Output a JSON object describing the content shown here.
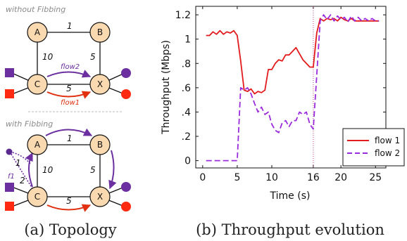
{
  "topology": {
    "top_label": "without Fibbing",
    "bottom_label": "with Fibbing",
    "nodes": {
      "a": "A",
      "b": "B",
      "c": "C",
      "x": "X"
    },
    "weights": {
      "ab": "1",
      "ac": "10",
      "bx": "5",
      "cx": "5"
    },
    "flow1_label": "flow1",
    "flow2_label": "flow2",
    "fake_node_label": "f1",
    "fake_w1": "1",
    "fake_w2": "2",
    "caption": "(a) Topology",
    "colors": {
      "node_fill": "#f9d9b0",
      "flow1": "#e03010",
      "flow2": "#6b2fa0"
    }
  },
  "chart_data": {
    "type": "line",
    "caption": "(b) Throughput evolution",
    "xlabel": "Time (s)",
    "ylabel": "Throughput (Mbps)",
    "xlim": [
      -1,
      26.5
    ],
    "ylim": [
      -0.06,
      1.27
    ],
    "xticks": [
      0,
      5,
      10,
      16,
      20,
      25
    ],
    "xtick_labels": [
      "0",
      "5",
      "10",
      "16",
      "20",
      "25"
    ],
    "yticks": [
      0,
      0.2,
      0.4,
      0.6,
      0.8,
      1.0,
      1.2
    ],
    "ytick_labels": [
      "0",
      ".2",
      ".4",
      ".6",
      ".8",
      "1",
      "1.2"
    ],
    "vline_x": 16,
    "legend_position": "bottom-right",
    "series": [
      {
        "name": "flow 1",
        "color": "#e31a1c",
        "dash": "solid",
        "x": [
          0.5,
          1,
          1.5,
          2,
          2.5,
          3,
          3.5,
          4,
          4.5,
          5,
          5.5,
          6,
          6.5,
          7,
          7.5,
          8,
          8.5,
          9,
          9.5,
          10,
          10.5,
          11,
          11.5,
          12,
          12.5,
          13,
          13.5,
          14,
          14.5,
          15,
          15.5,
          16,
          16.5,
          17,
          17.5,
          18,
          18.5,
          19,
          19.5,
          20,
          20.5,
          21,
          21.5,
          22,
          22.5,
          23,
          23.5,
          24,
          24.5,
          25,
          25.5
        ],
        "y": [
          1.03,
          1.03,
          1.06,
          1.04,
          1.07,
          1.04,
          1.06,
          1.05,
          1.07,
          1.03,
          0.82,
          0.58,
          0.57,
          0.59,
          0.55,
          0.57,
          0.56,
          0.58,
          0.75,
          0.75,
          0.8,
          0.83,
          0.82,
          0.87,
          0.87,
          0.9,
          0.93,
          0.88,
          0.83,
          0.8,
          0.77,
          0.77,
          1.05,
          1.17,
          1.15,
          1.17,
          1.16,
          1.17,
          1.15,
          1.18,
          1.16,
          1.15,
          1.17,
          1.15,
          1.15,
          1.15,
          1.15,
          1.15,
          1.15,
          1.15,
          1.15
        ]
      },
      {
        "name": "flow 2",
        "color": "#9a2bde",
        "dash": "dashed",
        "x": [
          0.5,
          1,
          1.5,
          2,
          2.5,
          3,
          3.5,
          4,
          4.5,
          5,
          5.5,
          6,
          6.5,
          7,
          7.5,
          8,
          8.5,
          9,
          9.5,
          10,
          10.5,
          11,
          11.5,
          12,
          12.5,
          13,
          13.5,
          14,
          14.5,
          15,
          15.5,
          16,
          16.5,
          17,
          17.5,
          18,
          18.5,
          19,
          19.5,
          20,
          20.5,
          21,
          21.5,
          22,
          22.5,
          23,
          23.5,
          24,
          24.5,
          25,
          25.5
        ],
        "y": [
          0,
          0,
          0,
          0,
          0,
          0,
          0,
          0,
          0,
          0,
          0.6,
          0.58,
          0.6,
          0.55,
          0.47,
          0.4,
          0.44,
          0.38,
          0.4,
          0.3,
          0.25,
          0.23,
          0.31,
          0.33,
          0.28,
          0.33,
          0.33,
          0.4,
          0.38,
          0.4,
          0.3,
          0.26,
          0.7,
          1.15,
          1.2,
          1.16,
          1.2,
          1.15,
          1.19,
          1.16,
          1.18,
          1.14,
          1.19,
          1.15,
          1.18,
          1.15,
          1.17,
          1.15,
          1.17,
          1.15,
          1.15
        ]
      }
    ]
  }
}
